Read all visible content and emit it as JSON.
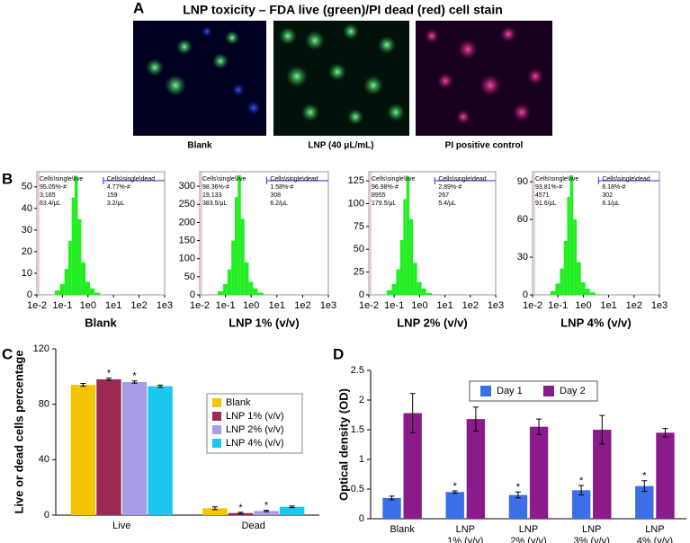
{
  "panel_labels": [
    "A",
    "B",
    "C",
    "D"
  ],
  "panel_a": {
    "title": "LNP toxicity – FDA live (green)/PI dead (red) cell stain",
    "images": [
      "Blank",
      "LNP (40 μL/mL)",
      "PI positive control"
    ]
  },
  "chart_data": [
    {
      "type": "histogram",
      "title": "Blank",
      "log_x": true,
      "xlim": [
        0.01,
        1000
      ],
      "xticks": [
        {
          "value": 0.01,
          "label": "1e-2"
        },
        {
          "value": 0.1,
          "label": "1e-1"
        },
        {
          "value": 1,
          "label": "1e0"
        },
        {
          "value": 10,
          "label": "1e1"
        },
        {
          "value": 100,
          "label": "1e2"
        },
        {
          "value": 1000,
          "label": "1e3"
        }
      ],
      "ylim": [
        0,
        57
      ],
      "yticks": [
        0,
        10,
        20,
        30,
        40,
        50
      ],
      "color": "#22ee22",
      "bins": [
        0.05,
        0.08,
        0.12,
        0.17,
        0.23,
        0.3,
        0.4,
        0.55,
        0.8,
        1.2,
        1.8,
        3
      ],
      "counts": [
        2,
        5,
        12,
        25,
        45,
        55,
        35,
        15,
        6,
        3,
        1
      ],
      "gates": [
        [
          "Cells\\single\\live",
          "95.05%-#",
          "3,165",
          "63.4/μL"
        ],
        [
          "Cells\\single\\dead",
          "4.77%-#",
          "159",
          "3.2/μL"
        ]
      ]
    },
    {
      "type": "histogram",
      "title": "LNP 1% (v/v)",
      "log_x": true,
      "xlim": [
        0.01,
        1000
      ],
      "xticks": [
        {
          "value": 0.01,
          "label": "1e-2"
        },
        {
          "value": 0.1,
          "label": "1e-1"
        },
        {
          "value": 1,
          "label": "1e0"
        },
        {
          "value": 10,
          "label": "1e1"
        },
        {
          "value": 100,
          "label": "1e2"
        },
        {
          "value": 1000,
          "label": "1e3"
        }
      ],
      "ylim": [
        0,
        340
      ],
      "yticks": [
        0,
        50,
        100,
        150,
        200,
        250,
        300
      ],
      "color": "#22ee22",
      "bins": [
        0.05,
        0.08,
        0.12,
        0.17,
        0.23,
        0.3,
        0.4,
        0.55,
        0.8,
        1.2,
        1.8,
        3
      ],
      "counts": [
        10,
        30,
        70,
        150,
        270,
        330,
        210,
        90,
        36,
        18,
        6
      ],
      "gates": [
        [
          "Cells\\single\\live",
          "98.36%-#",
          "19,133",
          "383.5/μL"
        ],
        [
          "Cells\\single\\dead",
          "1.58%-#",
          "308",
          "6.2/μL"
        ]
      ]
    },
    {
      "type": "histogram",
      "title": "LNP 2% (v/v)",
      "log_x": true,
      "xlim": [
        0.01,
        1000
      ],
      "xticks": [
        {
          "value": 0.01,
          "label": "1e-2"
        },
        {
          "value": 0.1,
          "label": "1e-1"
        },
        {
          "value": 1,
          "label": "1e0"
        },
        {
          "value": 10,
          "label": "1e1"
        },
        {
          "value": 100,
          "label": "1e2"
        },
        {
          "value": 1000,
          "label": "1e3"
        }
      ],
      "ylim": [
        0,
        135
      ],
      "yticks": [
        0,
        25,
        50,
        75,
        100,
        125
      ],
      "color": "#22ee22",
      "bins": [
        0.05,
        0.08,
        0.12,
        0.17,
        0.23,
        0.3,
        0.4,
        0.55,
        0.8,
        1.2,
        1.8,
        3
      ],
      "counts": [
        5,
        12,
        28,
        60,
        105,
        130,
        83,
        35,
        14,
        7,
        2
      ],
      "gates": [
        [
          "Cells\\single\\live",
          "96.98%-#",
          "8955",
          "179.5/μL"
        ],
        [
          "Cells\\single\\dead",
          "2.89%-#",
          "267",
          "5.4/μL"
        ]
      ]
    },
    {
      "type": "histogram",
      "title": "LNP 4% (v/v)",
      "log_x": true,
      "xlim": [
        0.01,
        1000
      ],
      "xticks": [
        {
          "value": 0.01,
          "label": "1e-2"
        },
        {
          "value": 0.1,
          "label": "1e-1"
        },
        {
          "value": 1,
          "label": "1e0"
        },
        {
          "value": 10,
          "label": "1e1"
        },
        {
          "value": 100,
          "label": "1e2"
        },
        {
          "value": 1000,
          "label": "1e3"
        }
      ],
      "ylim": [
        0,
        98
      ],
      "yticks": [
        0,
        30,
        60,
        90
      ],
      "color": "#22ee22",
      "bins": [
        0.05,
        0.08,
        0.12,
        0.17,
        0.23,
        0.3,
        0.4,
        0.55,
        0.8,
        1.2,
        1.8,
        3
      ],
      "counts": [
        3,
        9,
        21,
        43,
        78,
        95,
        60,
        26,
        10,
        5,
        2
      ],
      "gates": [
        [
          "Cells\\single\\live",
          "93.81%-#",
          "4571",
          "91.6/μL"
        ],
        [
          "Cells\\single\\dead",
          "6.18%-#",
          "302",
          "6.1/μL"
        ]
      ]
    },
    {
      "type": "bar",
      "y_label": "Live or dead cells percentage",
      "categories": [
        [
          "Live"
        ],
        [
          "Dead"
        ]
      ],
      "ylim": [
        0,
        120
      ],
      "yticks": [
        0,
        40,
        80,
        120
      ],
      "legend": "right",
      "series": [
        {
          "name": "Blank",
          "color": "#f5c400",
          "values": [
            94,
            5
          ],
          "errors": [
            1,
            1
          ],
          "significance": [
            null,
            null
          ]
        },
        {
          "name": "LNP 1% (v/v)",
          "color": "#9b2a55",
          "values": [
            98,
            1.5
          ],
          "errors": [
            0.8,
            0.5
          ],
          "significance": [
            "*",
            "*"
          ]
        },
        {
          "name": "LNP 2% (v/v)",
          "color": "#a99ce8",
          "values": [
            96,
            3
          ],
          "errors": [
            0.8,
            0.5
          ],
          "significance": [
            "*",
            "*"
          ]
        },
        {
          "name": "LNP 4% (v/v)",
          "color": "#1cc6ee",
          "values": [
            93,
            6
          ],
          "errors": [
            0.8,
            0.6
          ],
          "significance": [
            null,
            null
          ]
        }
      ]
    },
    {
      "type": "bar",
      "y_label": "Optical density (OD)",
      "categories": [
        [
          "Blank"
        ],
        [
          "LNP",
          "1% (v/v)"
        ],
        [
          "LNP",
          "2% (v/v)"
        ],
        [
          "LNP",
          "3% (v/v)"
        ],
        [
          "LNP",
          "4% (v/v)"
        ]
      ],
      "ylim": [
        0,
        2.5
      ],
      "yticks": [
        0,
        0.5,
        1,
        1.5,
        2,
        2.5
      ],
      "legend": "top",
      "series": [
        {
          "name": "Day 1",
          "color": "#3a6fe8",
          "values": [
            0.35,
            0.45,
            0.4,
            0.48,
            0.55
          ],
          "errors": [
            0.03,
            0.02,
            0.05,
            0.08,
            0.09
          ],
          "significance": [
            null,
            "*",
            "*",
            "*",
            "*"
          ]
        },
        {
          "name": "Day 2",
          "color": "#8b1a8b",
          "values": [
            1.78,
            1.68,
            1.55,
            1.5,
            1.45
          ],
          "errors": [
            0.33,
            0.2,
            0.13,
            0.24,
            0.07
          ],
          "significance": [
            null,
            null,
            null,
            null,
            null
          ]
        }
      ]
    }
  ]
}
